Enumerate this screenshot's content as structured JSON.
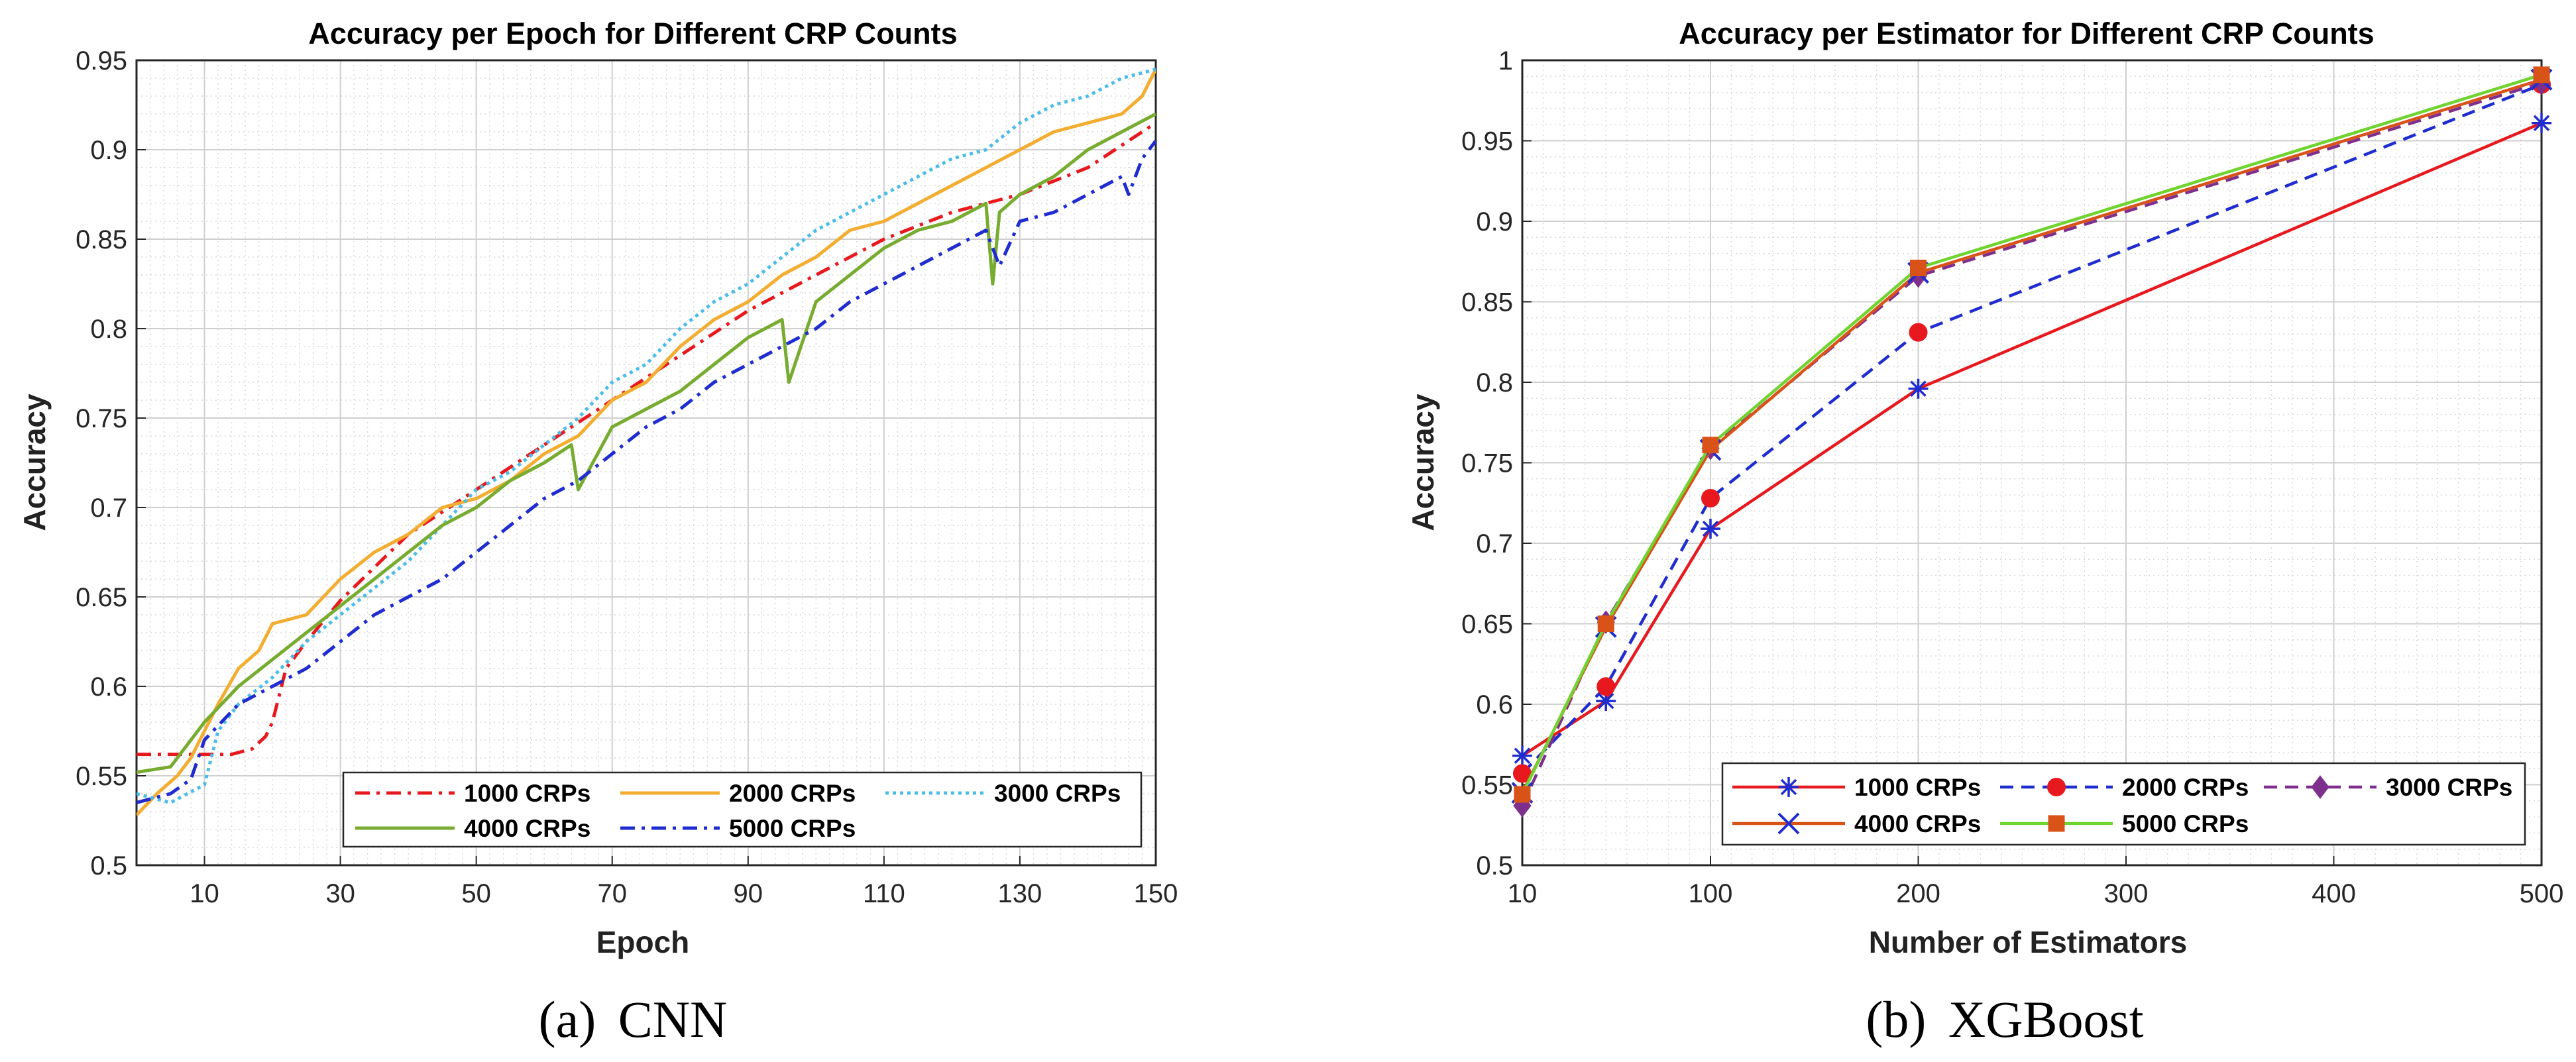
{
  "chart_data": [
    {
      "type": "line",
      "title": "Accuracy per Epoch for Different CRP Counts",
      "xlabel": "Epoch",
      "ylabel": "Accuracy",
      "xlim": [
        0,
        150
      ],
      "ylim": [
        0.5,
        0.95
      ],
      "xticks": [
        10,
        30,
        50,
        70,
        90,
        110,
        130,
        150
      ],
      "yticks": [
        0.5,
        0.55,
        0.6,
        0.65,
        0.7,
        0.75,
        0.8,
        0.85,
        0.9,
        0.95
      ],
      "xtick_labels": [
        "10",
        "30",
        "50",
        "70",
        "90",
        "110",
        "130",
        "150"
      ],
      "ytick_labels": [
        "0.5",
        "0.55",
        "0.6",
        "0.65",
        "0.7",
        "0.75",
        "0.8",
        "0.85",
        "0.9",
        "0.95"
      ],
      "grid": true,
      "legend_position": "bottom-right",
      "caption": {
        "label": "(a)",
        "text": "CNN"
      },
      "series": [
        {
          "name": "1000 CRPs",
          "color": "#e8191e",
          "style": "dashdot",
          "x": [
            0,
            5,
            10,
            14,
            17,
            19,
            20,
            22,
            25,
            30,
            40,
            50,
            60,
            70,
            80,
            90,
            100,
            110,
            120,
            130,
            140,
            150
          ],
          "y": [
            0.562,
            0.562,
            0.562,
            0.562,
            0.565,
            0.572,
            0.58,
            0.61,
            0.625,
            0.648,
            0.685,
            0.71,
            0.735,
            0.76,
            0.785,
            0.81,
            0.83,
            0.85,
            0.865,
            0.875,
            0.89,
            0.915
          ]
        },
        {
          "name": "2000 CRPs",
          "color": "#f3ad31",
          "style": "solid",
          "x": [
            0,
            3,
            6,
            8,
            10,
            12,
            15,
            18,
            20,
            25,
            30,
            35,
            40,
            45,
            50,
            55,
            60,
            65,
            70,
            75,
            80,
            85,
            90,
            95,
            100,
            105,
            110,
            115,
            120,
            125,
            130,
            135,
            140,
            145,
            148,
            150
          ],
          "y": [
            0.528,
            0.54,
            0.55,
            0.56,
            0.575,
            0.59,
            0.61,
            0.62,
            0.635,
            0.64,
            0.66,
            0.675,
            0.685,
            0.7,
            0.705,
            0.715,
            0.73,
            0.74,
            0.76,
            0.77,
            0.79,
            0.805,
            0.815,
            0.83,
            0.84,
            0.855,
            0.86,
            0.87,
            0.88,
            0.89,
            0.9,
            0.91,
            0.915,
            0.92,
            0.93,
            0.945
          ]
        },
        {
          "name": "3000 CRPs",
          "color": "#4cbde8",
          "style": "dotted",
          "x": [
            0,
            5,
            10,
            12,
            15,
            20,
            25,
            30,
            35,
            40,
            45,
            50,
            55,
            60,
            65,
            70,
            75,
            80,
            85,
            90,
            95,
            100,
            105,
            110,
            115,
            120,
            125,
            130,
            135,
            140,
            145,
            150
          ],
          "y": [
            0.54,
            0.535,
            0.545,
            0.575,
            0.59,
            0.605,
            0.625,
            0.64,
            0.655,
            0.67,
            0.69,
            0.71,
            0.72,
            0.735,
            0.75,
            0.77,
            0.78,
            0.8,
            0.815,
            0.825,
            0.84,
            0.855,
            0.865,
            0.875,
            0.885,
            0.895,
            0.9,
            0.915,
            0.925,
            0.93,
            0.94,
            0.945
          ]
        },
        {
          "name": "4000 CRPs",
          "color": "#77ac30",
          "style": "solid",
          "x": [
            0,
            5,
            10,
            15,
            20,
            25,
            30,
            35,
            40,
            45,
            50,
            55,
            60,
            64,
            65,
            70,
            75,
            80,
            85,
            90,
            95,
            96,
            100,
            105,
            110,
            115,
            120,
            125,
            126,
            127,
            130,
            135,
            140,
            145,
            150
          ],
          "y": [
            0.552,
            0.555,
            0.58,
            0.6,
            0.615,
            0.63,
            0.645,
            0.66,
            0.675,
            0.69,
            0.7,
            0.715,
            0.725,
            0.735,
            0.71,
            0.745,
            0.755,
            0.765,
            0.78,
            0.795,
            0.805,
            0.77,
            0.815,
            0.83,
            0.845,
            0.855,
            0.86,
            0.87,
            0.825,
            0.865,
            0.875,
            0.885,
            0.9,
            0.91,
            0.92
          ]
        },
        {
          "name": "5000 CRPs",
          "color": "#1f2cd0",
          "style": "dashdot",
          "x": [
            0,
            5,
            8,
            10,
            15,
            20,
            25,
            30,
            35,
            40,
            45,
            50,
            55,
            60,
            65,
            70,
            75,
            80,
            85,
            90,
            95,
            100,
            105,
            110,
            115,
            120,
            125,
            127,
            130,
            135,
            140,
            145,
            146,
            148,
            150
          ],
          "y": [
            0.535,
            0.54,
            0.548,
            0.57,
            0.59,
            0.6,
            0.61,
            0.625,
            0.64,
            0.65,
            0.66,
            0.675,
            0.69,
            0.705,
            0.715,
            0.73,
            0.745,
            0.755,
            0.77,
            0.78,
            0.79,
            0.8,
            0.815,
            0.825,
            0.835,
            0.845,
            0.855,
            0.835,
            0.86,
            0.865,
            0.875,
            0.885,
            0.875,
            0.895,
            0.905
          ]
        }
      ],
      "legend": [
        "1000 CRPs",
        "2000 CRPs",
        "3000 CRPs",
        "4000 CRPs",
        "5000 CRPs"
      ]
    },
    {
      "type": "line",
      "title": "Accuracy per Estimator for Different CRP Counts",
      "xlabel": "Number of Estimators",
      "ylabel": "Accuracy",
      "xlim": [
        10,
        500
      ],
      "ylim": [
        0.5,
        1.0
      ],
      "x_scale": "piecewise (10, 50, 100 spacing compressed; 100–500 linear)",
      "xticks": [
        10,
        100,
        200,
        300,
        400,
        500
      ],
      "yticks": [
        0.5,
        0.55,
        0.6,
        0.65,
        0.7,
        0.75,
        0.8,
        0.85,
        0.9,
        0.95,
        1.0
      ],
      "xtick_labels": [
        "10",
        "100",
        "200",
        "300",
        "400",
        "500"
      ],
      "ytick_labels": [
        "0.5",
        "0.55",
        "0.6",
        "0.65",
        "0.7",
        "0.75",
        "0.8",
        "0.85",
        "0.9",
        "0.95",
        "1"
      ],
      "grid": true,
      "legend_position": "bottom-right",
      "caption": {
        "label": "(b)",
        "text": "XGBoost"
      },
      "x": [
        10,
        50,
        100,
        200,
        500
      ],
      "series": [
        {
          "name": "1000 CRPs",
          "color": "#e8191e",
          "marker": "asterisk",
          "marker_color": "#1f2cd0",
          "style": "solid",
          "values": [
            0.568,
            0.602,
            0.709,
            0.796,
            0.961
          ]
        },
        {
          "name": "2000 CRPs",
          "color": "#1f2cd0",
          "marker": "circle",
          "marker_color": "#e8191e",
          "style": "dashed",
          "values": [
            0.557,
            0.611,
            0.728,
            0.831,
            0.985
          ]
        },
        {
          "name": "3000 CRPs",
          "color": "#7e2f8e",
          "marker": "diamond",
          "marker_color": "#7e2f8e",
          "style": "dashed",
          "values": [
            0.537,
            0.651,
            0.759,
            0.866,
            0.986
          ]
        },
        {
          "name": "4000 CRPs",
          "color": "#d95319",
          "marker": "x",
          "marker_color": "#1f2cd0",
          "style": "solid",
          "values": [
            0.545,
            0.648,
            0.758,
            0.868,
            0.988
          ]
        },
        {
          "name": "5000 CRPs",
          "color": "#6fd42f",
          "marker": "square",
          "marker_color": "#d95319",
          "style": "solid",
          "values": [
            0.544,
            0.65,
            0.761,
            0.871,
            0.991
          ]
        }
      ],
      "legend": [
        "1000 CRPs",
        "2000 CRPs",
        "3000 CRPs",
        "4000 CRPs",
        "5000 CRPs"
      ]
    }
  ]
}
